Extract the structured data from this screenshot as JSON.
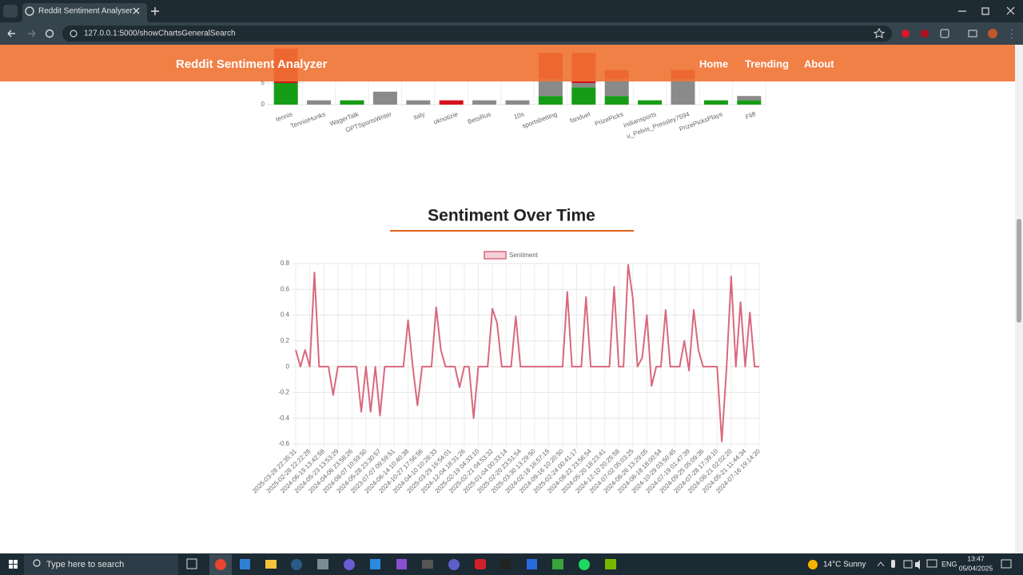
{
  "browser": {
    "tab_title": "Reddit Sentiment Analyser",
    "url": "127.0.0.1:5000/showChartsGeneralSearch"
  },
  "header": {
    "brand": "Reddit Sentiment Analyzer",
    "nav": [
      "Home",
      "Trending",
      "About"
    ]
  },
  "chart_data": [
    {
      "type": "bar",
      "stacked": true,
      "categories": [
        "tennis",
        "TennisHunks",
        "WagerTalk",
        "GPTSportsWriter",
        "italy",
        "oknotizie",
        "BetsRus",
        "10s",
        "sportsbetting",
        "fanduel",
        "PrizePicks",
        "indiansports",
        "u_Pelvis_Pressley7594",
        "PrizePicksPlays",
        "Fliff"
      ],
      "series": [
        {
          "color": "#169c16",
          "values": [
            5,
            0,
            1,
            0,
            0,
            0,
            0,
            0,
            2,
            4,
            2,
            1,
            0,
            1,
            1
          ]
        },
        {
          "color": "#8a8a8a",
          "values": [
            0,
            1,
            0,
            3,
            1,
            0,
            1,
            1,
            4,
            1,
            4,
            0,
            6,
            0,
            1
          ]
        },
        {
          "color": "#d4121c",
          "values": [
            8,
            0,
            0,
            0,
            0,
            1,
            0,
            0,
            6,
            7,
            2,
            0,
            2,
            0,
            0
          ]
        }
      ],
      "ylim": [
        0,
        15
      ],
      "yticks": [
        0,
        5
      ]
    },
    {
      "type": "line",
      "title": "Sentiment Over Time",
      "categories": [
        "2025-03-28 22:35:31",
        null,
        null,
        "2025-02-28 22:22:28",
        null,
        null,
        "2024-06-19 13:42:58",
        null,
        null,
        "2024-05-23 13:53:29",
        null,
        null,
        "2024-04-06 23:58:26",
        null,
        null,
        "2024-08-07 10:59:50",
        null,
        null,
        "2024-05-28 23:30:57",
        null,
        null,
        "2023-07-07 09:59:51",
        null,
        null,
        "2024-06-14 10:40:38",
        null,
        null,
        "2024-10-27 17:56:56",
        null,
        null,
        "2024-04-10 10:28:33",
        null,
        null,
        "2025-03-29 16:54:01",
        null,
        null,
        "2024-12-04 18:31:26",
        null,
        null,
        "2025-02-19 04:33:10",
        null,
        null,
        "2025-02-21 04:53:32",
        null,
        null,
        "2025-01-04 00:33:14",
        null,
        null,
        "2025-02-20 23:51:54",
        null,
        null,
        "2025-03-30 13:29:50",
        null,
        null,
        "2024-02-18 16:57:19",
        null,
        null,
        "2024-09-16 10:20:50",
        null,
        null,
        "2025-02-24 00:41:17",
        null,
        null,
        "2024-08-22 23:56:54",
        null,
        null,
        "2024-05-20 18:23:41",
        null,
        null,
        "2024-12-10 20:25:58",
        null,
        null,
        "2024-07-02 05:03:25",
        null,
        null,
        "2024-08-26 13:29:05",
        null,
        null,
        "2024-08-18 18:00:54",
        null,
        null,
        "2024-10-29 03:50:45",
        null,
        null,
        "2024-07-19 01:47:39",
        null,
        null,
        "2024-09-25 05:09:36",
        null,
        null,
        "2024-07-28 17:39:10",
        null,
        null,
        "2024-08-21 02:02:20",
        null,
        null,
        "2024-05-21 11:44:34",
        null,
        null,
        "2024-07-16 19:14:20"
      ],
      "series": [
        {
          "name": "Sentiment",
          "color": "#d9687c",
          "values": [
            0.13,
            0,
            0.13,
            0,
            0.73,
            0,
            0,
            0,
            -0.22,
            0,
            0,
            0,
            0,
            0,
            -0.35,
            0,
            -0.35,
            0,
            -0.38,
            0,
            0,
            0,
            0,
            0,
            0.36,
            0,
            -0.3,
            0,
            0,
            0,
            0.46,
            0.13,
            0,
            0,
            0,
            -0.16,
            0,
            0,
            -0.4,
            0,
            0,
            0,
            0.45,
            0.34,
            0,
            0,
            0,
            0.39,
            0,
            0,
            0,
            0,
            0,
            0,
            0,
            0,
            0,
            0,
            0.58,
            0,
            0,
            0,
            0.54,
            0,
            0,
            0,
            0,
            0,
            0.62,
            0,
            0,
            0.79,
            0.53,
            0,
            0.07,
            0.4,
            -0.15,
            0,
            0,
            0.44,
            0,
            0,
            0,
            0.2,
            -0.03,
            0.44,
            0.13,
            0,
            0,
            0,
            0,
            -0.58,
            -0.02,
            0.7,
            0,
            0.5,
            0,
            0.42,
            0,
            0
          ]
        }
      ],
      "ylim": [
        -0.6,
        0.8
      ],
      "yticks": [
        -0.6,
        -0.4,
        -0.2,
        0,
        0.2,
        0.4,
        0.6,
        0.8
      ],
      "grid": true
    }
  ],
  "taskbar": {
    "search": "Type here to search",
    "weather": "14°C Sunny",
    "language": "ENG",
    "time": "13:47",
    "date": "05/04/2025"
  }
}
